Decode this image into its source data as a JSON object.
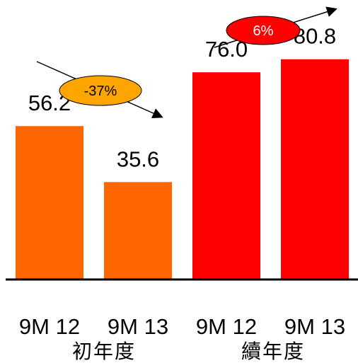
{
  "chart_data": {
    "type": "bar",
    "title": "",
    "xlabel": "",
    "ylabel": "",
    "ylim": [
      0,
      100
    ],
    "grid": false,
    "categories": [
      "9M 12",
      "9M 13",
      "9M 12",
      "9M 13"
    ],
    "groups": [
      {
        "label": "初年度",
        "categories": [
          "9M 12",
          "9M 13"
        ],
        "color": "#FF6600"
      },
      {
        "label": "續年度",
        "categories": [
          "9M 12",
          "9M 13"
        ],
        "color": "#FF0000"
      }
    ],
    "values": [
      56.2,
      35.6,
      76.0,
      80.8
    ],
    "value_labels": [
      "56.2",
      "35.6",
      "76.0",
      "80.8"
    ],
    "bar_colors": [
      "#FF6600",
      "#FF6600",
      "#FF0000",
      "#FF0000"
    ],
    "annotations": [
      {
        "text": "-37%",
        "fill": "#FFA500",
        "text_color": "#000000",
        "trend": "down"
      },
      {
        "text": "6%",
        "fill": "#FF0000",
        "text_color": "#FFFFFF",
        "trend": "up"
      }
    ]
  }
}
